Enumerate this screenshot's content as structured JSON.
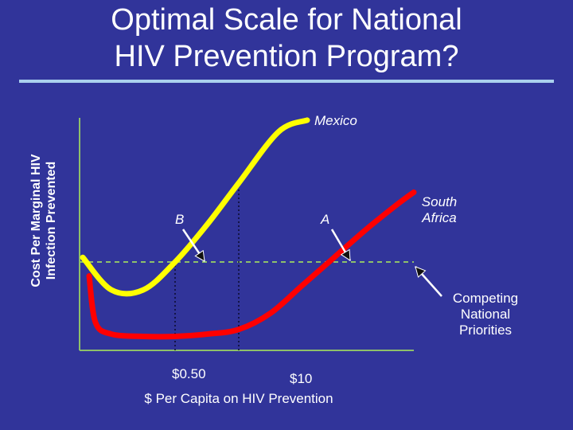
{
  "slide": {
    "title_line1": "Optimal Scale for National",
    "title_line2": "HIV Prevention Program?",
    "rule_color": "#aad0ee",
    "background_color": "#31349a"
  },
  "chart_data": {
    "type": "line",
    "title": "Optimal Scale for National HIV Prevention Program?",
    "ylabel_line1": "Cost Per Marginal HIV",
    "ylabel_line2": "Infection Prevented",
    "xlabel": "$ Per Capita on HIV Prevention",
    "x_ticks": [
      "$0.50",
      "$10"
    ],
    "x_tick_values": [
      0.5,
      10
    ],
    "xlim": [
      0,
      21
    ],
    "ylim": [
      0,
      100
    ],
    "grid": false,
    "series": [
      {
        "name": "Mexico",
        "color": "#ffff00",
        "x": [
          0.2,
          2,
          4,
          6,
          8,
          10,
          12.5,
          14.3
        ],
        "y": [
          40,
          26,
          26,
          38,
          54,
          72,
          94,
          99
        ]
      },
      {
        "name": "South Africa",
        "color": "#ff0000",
        "x": [
          0.6,
          1,
          2,
          4,
          6,
          8,
          10,
          12,
          14,
          16,
          18,
          20,
          21
        ],
        "y": [
          32,
          12,
          7,
          6,
          6,
          7,
          9,
          16,
          28,
          40,
          52,
          63,
          68
        ]
      }
    ],
    "reference_line": {
      "name": "Competing National Priorities",
      "y": 38,
      "color": "#8ec06a"
    },
    "vertical_markers": [
      {
        "x": 6
      },
      {
        "x": 10
      }
    ],
    "annotations": [
      {
        "id": "label_mexico",
        "text": "Mexico",
        "italic": true
      },
      {
        "id": "label_b",
        "text": "B",
        "italic": true
      },
      {
        "id": "label_a",
        "text": "A",
        "italic": true
      },
      {
        "id": "label_south_africa_1",
        "text": "South",
        "italic": true
      },
      {
        "id": "label_south_africa_2",
        "text": "Africa",
        "italic": true
      },
      {
        "id": "label_competing_1",
        "text": "Competing",
        "italic": false
      },
      {
        "id": "label_competing_2",
        "text": "National",
        "italic": false
      },
      {
        "id": "label_competing_3",
        "text": "Priorities",
        "italic": false
      }
    ],
    "axis_color": "#8ec06a"
  }
}
